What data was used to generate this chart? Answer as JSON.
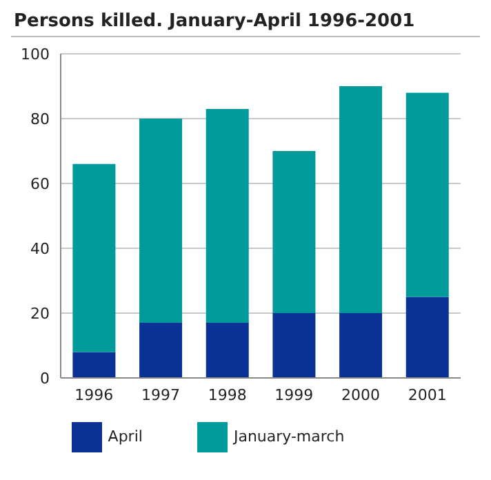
{
  "chart_data": {
    "type": "bar",
    "title": "Persons killed. January-April 1996-2001",
    "categories": [
      "1996",
      "1997",
      "1998",
      "1999",
      "2000",
      "2001"
    ],
    "series": [
      {
        "name": "April",
        "color": "#0a3296",
        "values": [
          8,
          17,
          17,
          20,
          20,
          25
        ]
      },
      {
        "name": "January-march",
        "color": "#009a9a",
        "values": [
          58,
          63,
          66,
          50,
          70,
          63
        ]
      }
    ],
    "stacked": true,
    "ylim": [
      0,
      100
    ],
    "yticks": [
      0,
      20,
      40,
      60,
      80,
      100
    ],
    "grid": "y",
    "legend": "bottom"
  }
}
